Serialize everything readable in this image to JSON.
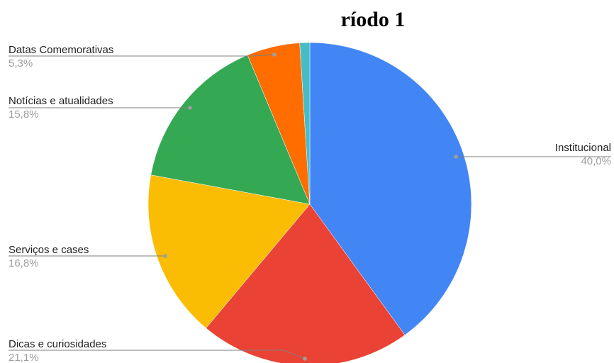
{
  "chart_data": {
    "type": "pie",
    "title": "ríodo 1",
    "series": [
      {
        "name": "",
        "slices": [
          {
            "label": "Institucional",
            "value": 40.0,
            "display": "40,0%",
            "color": "#4285F4"
          },
          {
            "label": "Dicas e curiosidades",
            "value": 21.1,
            "display": "21,1%",
            "color": "#EA4335"
          },
          {
            "label": "Serviços e cases",
            "value": 16.8,
            "display": "16,8%",
            "color": "#FBBC04"
          },
          {
            "label": "Notícias e atualidades",
            "value": 15.8,
            "display": "15,8%",
            "color": "#34A853"
          },
          {
            "label": "Datas Comemorativas",
            "value": 5.3,
            "display": "5,3%",
            "color": "#FF6D01"
          },
          {
            "label": "",
            "value": 1.0,
            "display": "",
            "color": "#46BDC6"
          }
        ]
      }
    ],
    "legend": "labels with leader lines",
    "start_angle": "top, clockwise"
  }
}
